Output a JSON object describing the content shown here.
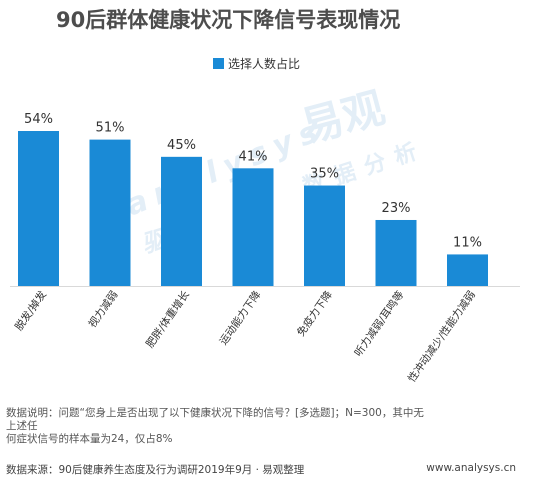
{
  "title": "90后群体健康状况下降信号表现情况",
  "legend": {
    "series_name": "选择人数占比",
    "color": "#1a8ad6"
  },
  "watermark": {
    "brand_cn": "易观",
    "brand_en": "analysys",
    "cn_phrase_1": "数据分析",
    "cn_phrase_2": "驱动"
  },
  "chart_data": {
    "type": "bar",
    "categories": [
      "脱发/掉发",
      "视力减弱",
      "肥胖/体重增长",
      "运动能力下降",
      "免疫力下降",
      "听力减弱/耳鸣等",
      "性冲动减少/性能力减弱"
    ],
    "series": [
      {
        "name": "选择人数占比",
        "values": [
          54,
          51,
          45,
          41,
          35,
          23,
          11
        ]
      }
    ],
    "value_labels": [
      "54%",
      "51%",
      "45%",
      "41%",
      "35%",
      "23%",
      "11%"
    ],
    "ylim": [
      0,
      60
    ],
    "bar_color": "#1a8ad6",
    "grid": false
  },
  "notes": {
    "line1": "数据说明：问题“您身上是否出现了以下健康状况下降的信号？[多选题]；N=300，其中无上述任",
    "line2": "何症状信号的样本量为24，仅占8%"
  },
  "footer": {
    "source": "数据来源：90后健康养生态度及行为调研2019年9月 · 易观整理",
    "url": "www.analysys.cn"
  }
}
